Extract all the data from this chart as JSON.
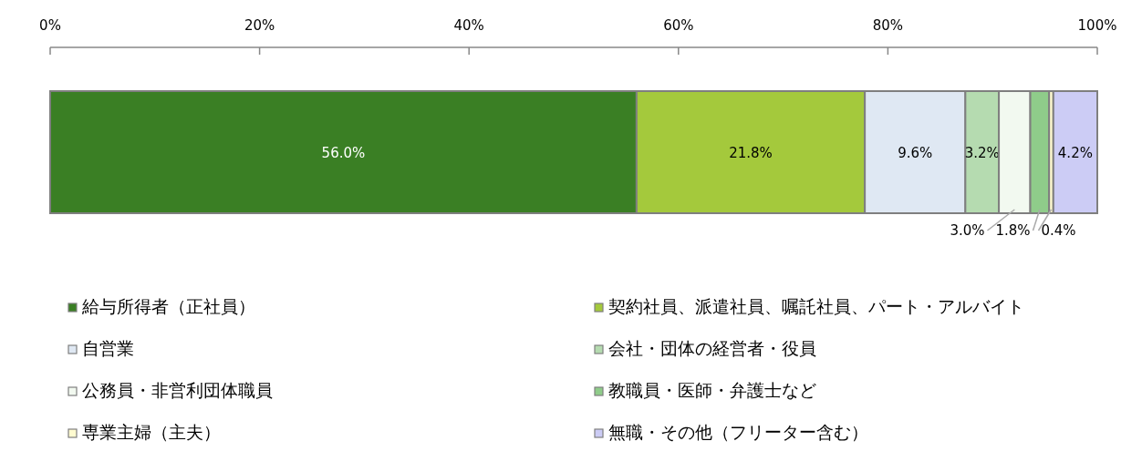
{
  "chart_data": {
    "type": "bar",
    "orientation": "horizontal",
    "stacked": true,
    "categories": [
      null
    ],
    "xlim": [
      0,
      100
    ],
    "xticks": [
      {
        "value": 0,
        "label": "0%"
      },
      {
        "value": 20,
        "label": "20%"
      },
      {
        "value": 40,
        "label": "40%"
      },
      {
        "value": 60,
        "label": "60%"
      },
      {
        "value": 80,
        "label": "80%"
      },
      {
        "value": 100,
        "label": "100%"
      }
    ],
    "series": [
      {
        "name": "給与所得者（正社員）",
        "color": "#3a7f24",
        "values": [
          56.0
        ],
        "value_labels": [
          "56.0%"
        ]
      },
      {
        "name": "契約社員、派遣社員、嘱託社員、パート・アルバイト",
        "color": "#a4c93c",
        "values": [
          21.8
        ],
        "value_labels": [
          "21.8%"
        ]
      },
      {
        "name": "自営業",
        "color": "#dfe8f3",
        "values": [
          9.6
        ],
        "value_labels": [
          "9.6%"
        ]
      },
      {
        "name": "会社・団体の経営者・役員",
        "color": "#b5dbb0",
        "values": [
          3.2
        ],
        "value_labels": [
          "3.2%"
        ]
      },
      {
        "name": "公務員・非営利団体職員",
        "color": "#f2f9f0",
        "values": [
          3.0
        ],
        "value_labels": [
          "3.0%"
        ]
      },
      {
        "name": "教職員・医師・弁護士など",
        "color": "#8fcc8a",
        "values": [
          1.8
        ],
        "value_labels": [
          "1.8%"
        ]
      },
      {
        "name": "専業主婦（主夫）",
        "color": "#fffbd0",
        "values": [
          0.4
        ],
        "value_labels": [
          "0.4%"
        ]
      },
      {
        "name": "無職・その他（フリーター含む）",
        "color": "#ccccf5",
        "values": [
          4.2
        ],
        "value_labels": [
          "4.2%"
        ]
      }
    ],
    "legend": "bottom"
  }
}
